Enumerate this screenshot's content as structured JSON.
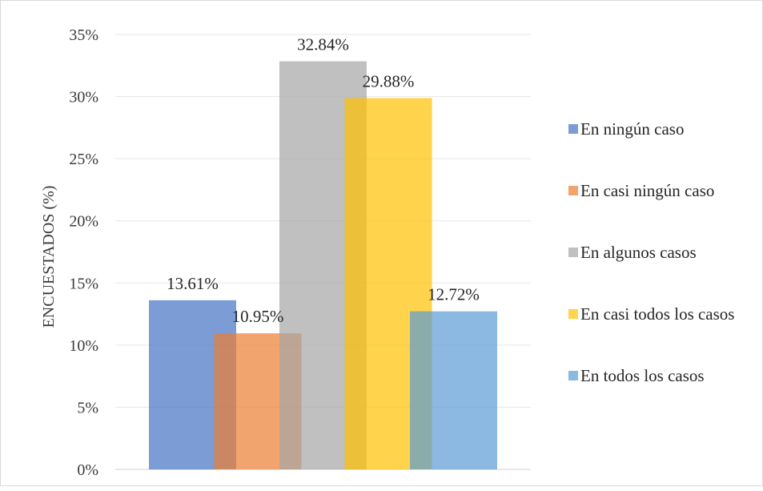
{
  "chart_data": {
    "type": "bar",
    "title": "",
    "xlabel": "",
    "ylabel": "ENCUESTADOS (%)",
    "ylim": [
      0,
      35
    ],
    "yticks": [
      "0%",
      "5%",
      "10%",
      "15%",
      "20%",
      "25%",
      "30%",
      "35%"
    ],
    "grid": true,
    "legend_position": "right",
    "series": [
      {
        "name": "En ningún caso",
        "value": 13.61,
        "label": "13.61%",
        "color": "#4472c4"
      },
      {
        "name": "En casi ningún caso",
        "value": 10.95,
        "label": "10.95%",
        "color": "#ed7d31"
      },
      {
        "name": "En algunos casos",
        "value": 32.84,
        "label": "32.84%",
        "color": "#a5a5a5"
      },
      {
        "name": "En casi todos los casos",
        "value": 29.88,
        "label": "29.88%",
        "color": "#ffc000"
      },
      {
        "name": "En todos los casos",
        "value": 12.72,
        "label": "12.72%",
        "color": "#5b9bd5"
      }
    ]
  }
}
